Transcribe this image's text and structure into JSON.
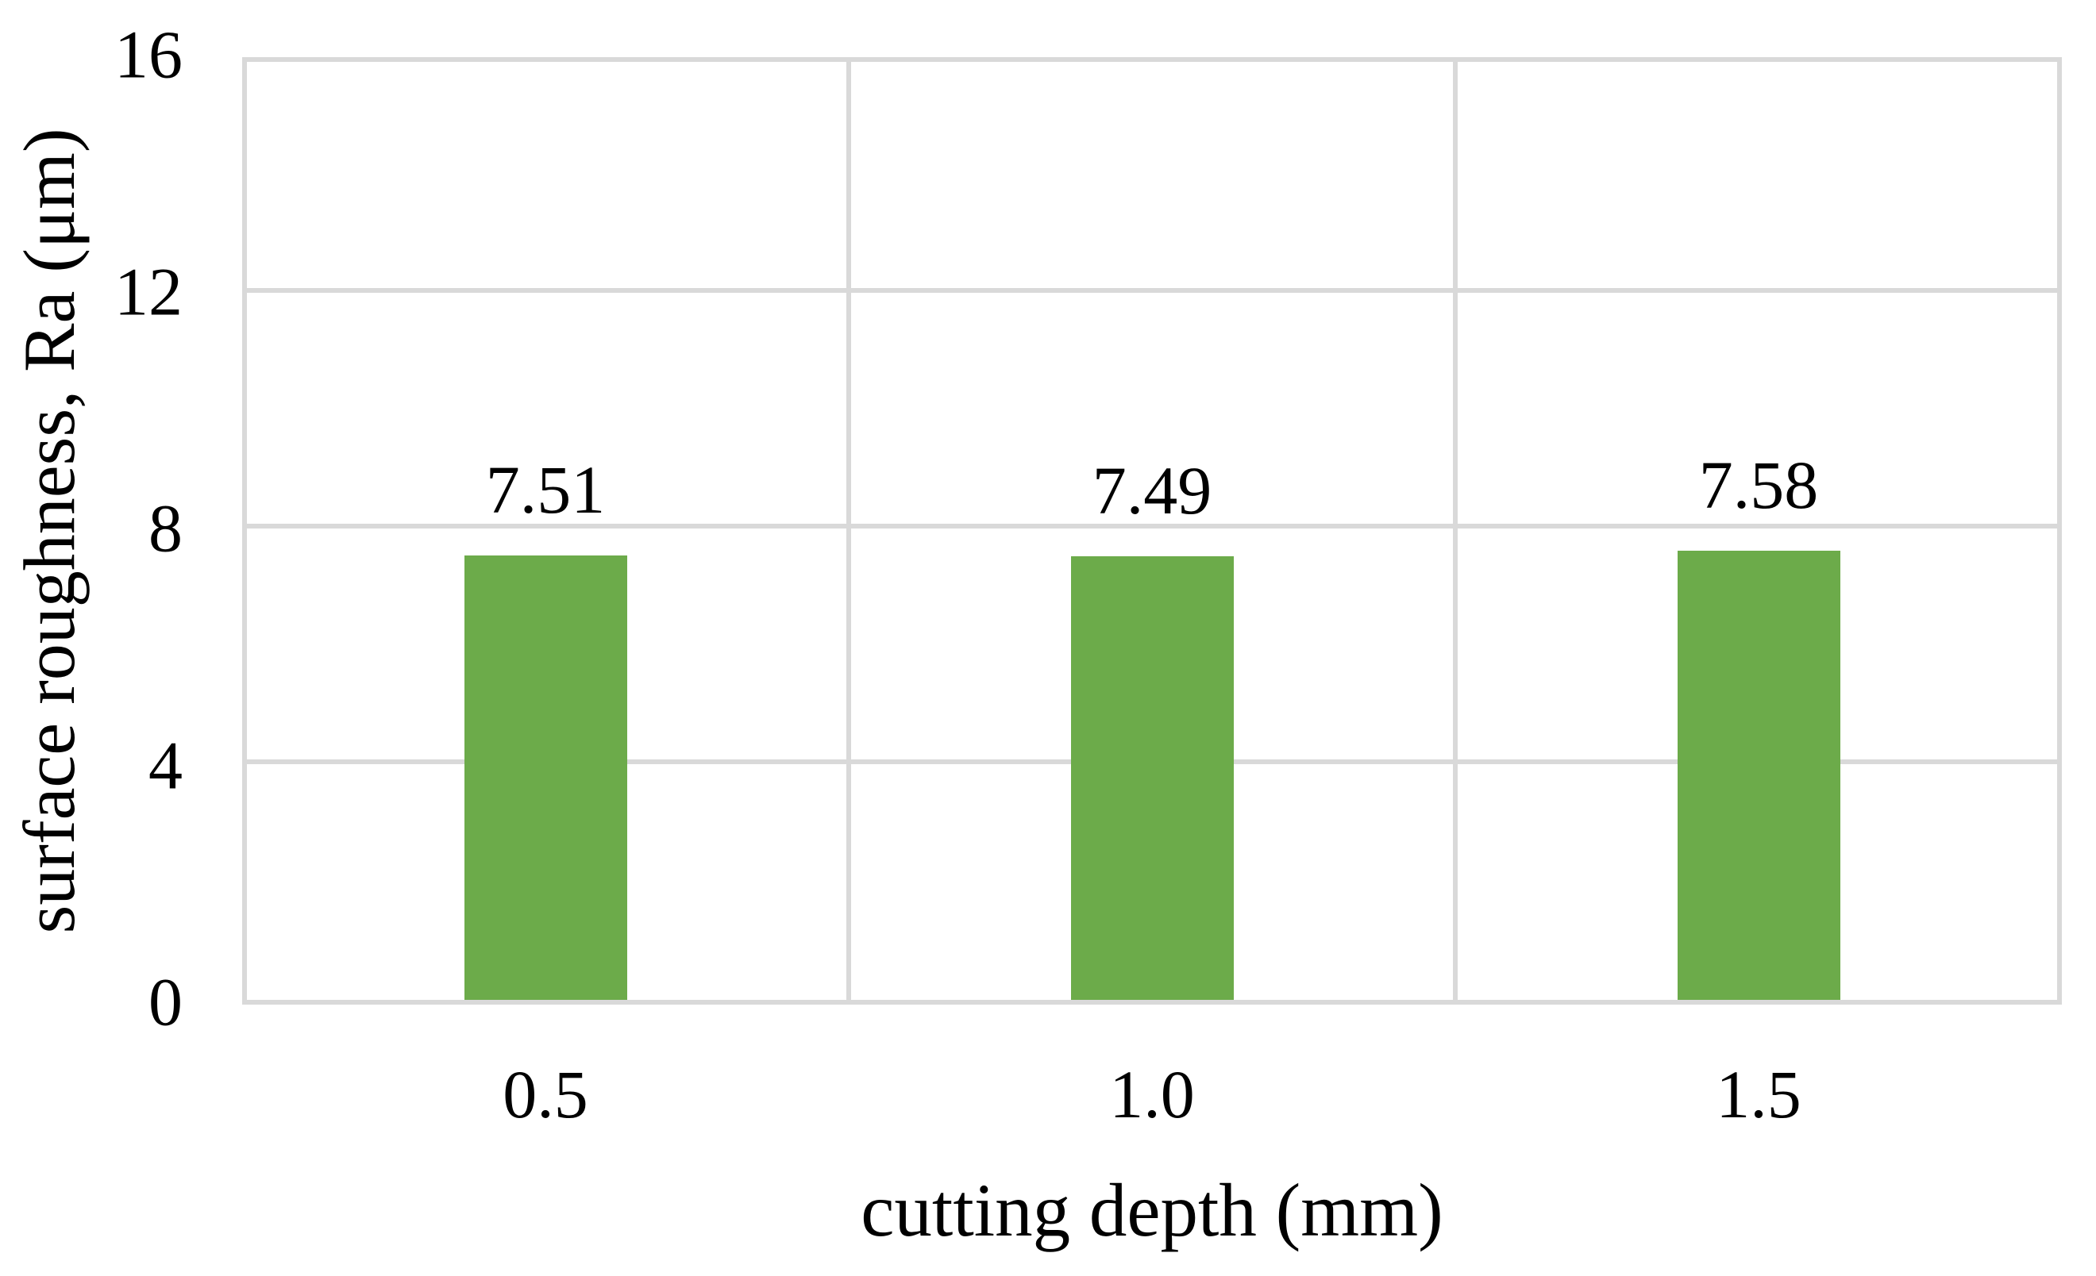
{
  "chart_data": {
    "type": "bar",
    "categories": [
      "0.5",
      "1.0",
      "1.5"
    ],
    "values": [
      7.51,
      7.49,
      7.58
    ],
    "data_labels": [
      "7.51",
      "7.49",
      "7.58"
    ],
    "title": "",
    "xlabel": "cutting depth (mm)",
    "ylabel": "surface roughness, Ra (μm)",
    "ylim": [
      0,
      16
    ],
    "yticks": [
      "0",
      "4",
      "8",
      "12",
      "16"
    ],
    "grid": true,
    "legend_position": "none",
    "bar_color": "#6CAB4A",
    "grid_color": "#D9D9D9",
    "text_color": "#000000",
    "background_color": "#FFFFFF"
  }
}
